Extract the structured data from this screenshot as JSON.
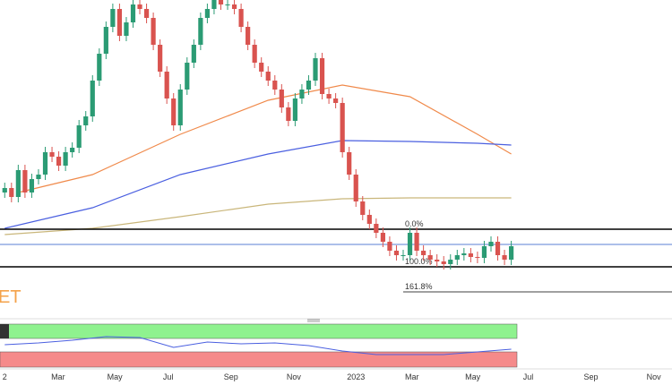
{
  "chart_data": [
    {
      "type": "candlestick",
      "watermark": "ET",
      "up_color": "#2b9b74",
      "down_color": "#d9534f",
      "xlim": [
        -0.7,
        98.8
      ],
      "ylim": [
        0,
        355
      ],
      "xticks": [
        {
          "value": 0,
          "label": "2"
        },
        {
          "value": 7.9,
          "label": "Mar"
        },
        {
          "value": 16.3,
          "label": "May"
        },
        {
          "value": 24.2,
          "label": "Jul"
        },
        {
          "value": 33.5,
          "label": "Sep"
        },
        {
          "value": 42.8,
          "label": "Nov"
        },
        {
          "value": 52,
          "label": "2023"
        },
        {
          "value": 60.3,
          "label": "Mar"
        },
        {
          "value": 69.3,
          "label": "May"
        },
        {
          "value": 77.5,
          "label": "Jul"
        },
        {
          "value": 86.8,
          "label": "Sep"
        },
        {
          "value": 96.1,
          "label": "Nov"
        }
      ],
      "x": [
        0,
        1,
        2,
        3,
        4,
        5,
        6,
        7,
        8,
        9,
        10,
        11,
        12,
        13,
        14,
        15,
        16,
        17,
        18,
        19,
        20,
        21,
        22,
        23,
        24,
        25,
        26,
        27,
        28,
        29,
        30,
        31,
        32,
        33,
        34,
        35,
        36,
        37,
        38,
        39,
        40,
        41,
        42,
        43,
        44,
        45,
        46,
        47,
        48,
        49,
        50,
        51,
        52,
        53,
        54,
        55,
        56,
        57,
        58,
        59,
        60,
        61,
        62,
        63,
        64,
        65,
        66,
        67,
        68,
        69,
        70,
        71,
        72,
        73,
        74,
        75
      ],
      "open": [
        140,
        145,
        135,
        165,
        140,
        155,
        160,
        185,
        180,
        170,
        185,
        190,
        215,
        225,
        265,
        295,
        325,
        345,
        315,
        330,
        350,
        345,
        335,
        305,
        275,
        245,
        215,
        255,
        285,
        305,
        335,
        345,
        355,
        350,
        350,
        345,
        325,
        305,
        285,
        275,
        265,
        255,
        235,
        220,
        245,
        255,
        265,
        290,
        250,
        245,
        240,
        185,
        160,
        130,
        115,
        105,
        95,
        85,
        75,
        70,
        70,
        95,
        75,
        70,
        65,
        63,
        60,
        65,
        70,
        72,
        68,
        67,
        80,
        85,
        70,
        65
      ],
      "high": [
        151,
        151,
        171,
        171,
        161,
        166,
        191,
        191,
        186,
        191,
        196,
        221,
        231,
        271,
        301,
        331,
        351,
        351,
        336,
        356,
        356,
        351,
        341,
        311,
        281,
        251,
        261,
        291,
        311,
        341,
        351,
        361,
        361,
        356,
        356,
        351,
        331,
        311,
        291,
        281,
        271,
        261,
        241,
        251,
        261,
        271,
        296,
        296,
        256,
        251,
        246,
        191,
        166,
        136,
        121,
        111,
        101,
        91,
        81,
        76,
        101,
        101,
        81,
        76,
        71,
        69,
        71,
        76,
        78,
        78,
        74,
        86,
        91,
        91,
        76,
        86
      ],
      "low": [
        134,
        129,
        129,
        134,
        134,
        149,
        154,
        174,
        164,
        164,
        179,
        184,
        209,
        219,
        259,
        289,
        319,
        309,
        309,
        324,
        339,
        329,
        299,
        269,
        239,
        209,
        209,
        249,
        279,
        299,
        329,
        339,
        344,
        344,
        339,
        319,
        299,
        279,
        269,
        259,
        249,
        229,
        214,
        214,
        239,
        249,
        259,
        244,
        239,
        234,
        179,
        154,
        124,
        109,
        99,
        89,
        79,
        69,
        64,
        64,
        64,
        69,
        64,
        59,
        57,
        54,
        54,
        59,
        64,
        62,
        61,
        61,
        74,
        64,
        59,
        59
      ],
      "close": [
        145,
        135,
        165,
        140,
        155,
        160,
        185,
        180,
        170,
        185,
        190,
        215,
        225,
        265,
        295,
        325,
        345,
        315,
        330,
        350,
        345,
        335,
        305,
        275,
        245,
        215,
        255,
        285,
        305,
        335,
        345,
        355,
        350,
        350,
        345,
        325,
        305,
        285,
        275,
        265,
        255,
        235,
        220,
        245,
        255,
        265,
        290,
        250,
        245,
        240,
        185,
        160,
        130,
        115,
        105,
        95,
        85,
        75,
        70,
        70,
        95,
        75,
        70,
        65,
        63,
        60,
        65,
        70,
        72,
        68,
        67,
        80,
        85,
        70,
        65,
        80
      ],
      "moving_averages": [
        {
          "color": "#f08a4b",
          "x": [
            2,
            13,
            26,
            39,
            50,
            60,
            70,
            75
          ],
          "values": [
            140,
            160,
            205,
            243,
            260,
            247,
            205,
            183
          ]
        },
        {
          "color": "#4a5fe0",
          "x": [
            0,
            13,
            26,
            39,
            50,
            60,
            70,
            75
          ],
          "values": [
            100,
            123,
            160,
            183,
            198,
            197,
            195,
            193
          ]
        },
        {
          "color": "#c9b67a",
          "x": [
            0,
            13,
            26,
            39,
            50,
            60,
            70,
            75
          ],
          "values": [
            93,
            100,
            113,
            127,
            133,
            134,
            134,
            134
          ]
        }
      ],
      "price_line": {
        "value": 82,
        "color": "#5b7fd6"
      },
      "levels": [
        {
          "label": "0.0%",
          "value": 99,
          "x_start": 59
        },
        {
          "label": "100.0%",
          "value": 57,
          "x_start": 59
        },
        {
          "label": "161.8%",
          "value": 29,
          "x_start": 59
        }
      ]
    },
    {
      "type": "line",
      "ylim": [
        0,
        100
      ],
      "bands": [
        {
          "from": 64,
          "to": 96,
          "color": "#8ff28f"
        },
        {
          "from": 0,
          "to": 34,
          "color": "#f58a8a"
        }
      ],
      "series": [
        {
          "color": "#4a5fe0",
          "x": [
            0,
            5,
            10,
            15,
            20,
            25,
            30,
            35,
            40,
            45,
            50,
            55,
            60,
            65,
            70,
            75
          ],
          "values": [
            50,
            54,
            60,
            68,
            66,
            44,
            56,
            52,
            54,
            48,
            36,
            28,
            28,
            28,
            34,
            40
          ]
        }
      ]
    }
  ]
}
